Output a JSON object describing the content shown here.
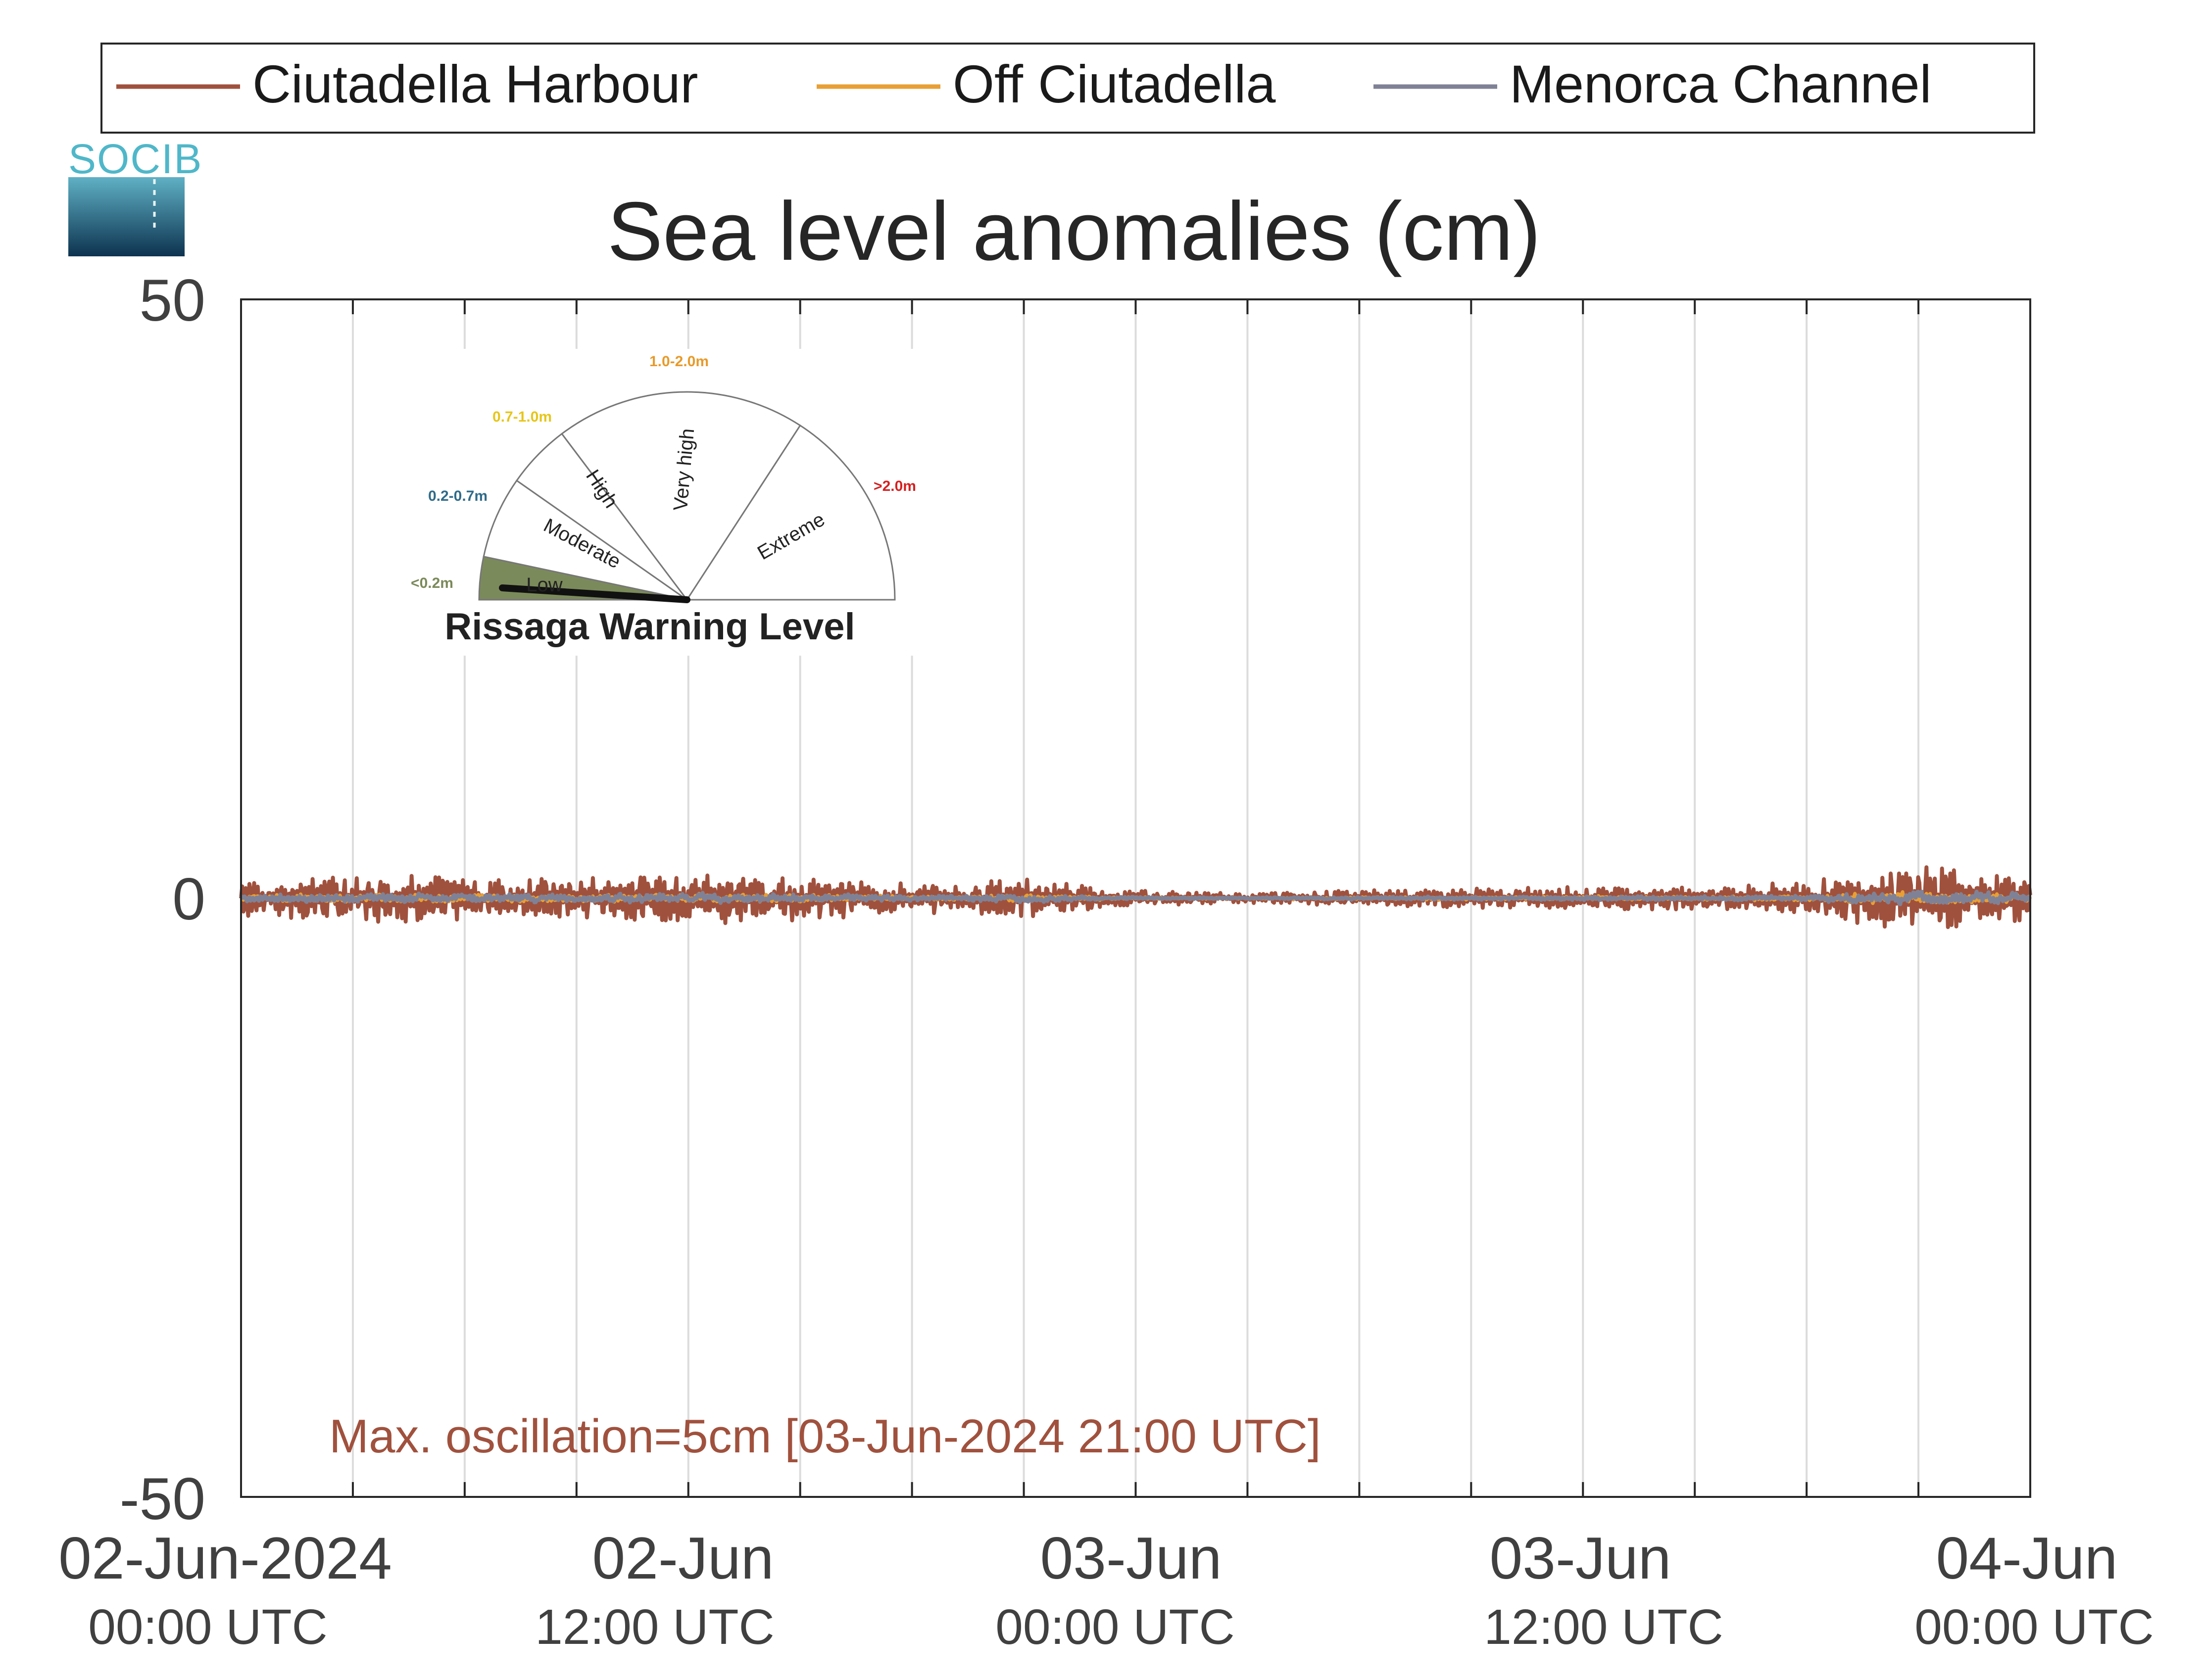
{
  "chart_data": {
    "type": "line",
    "title": "Sea level anomalies (cm)",
    "xlabel": "",
    "ylabel": "",
    "ylim": [
      -50,
      50
    ],
    "yticks": [
      "50",
      "0",
      "-50"
    ],
    "xlim": [
      "2024-06-02T00:00",
      "2024-06-04T00:00"
    ],
    "x_tick_labels": [
      {
        "date": "02-Jun-2024",
        "time": "00:00 UTC"
      },
      {
        "date": "02-Jun",
        "time": "12:00 UTC"
      },
      {
        "date": "03-Jun",
        "time": "00:00 UTC"
      },
      {
        "date": "03-Jun",
        "time": "12:00 UTC"
      },
      {
        "date": "04-Jun",
        "time": "00:00 UTC"
      }
    ],
    "grid": "vertical every 3 hours",
    "legend_position": "top",
    "series": [
      {
        "name": "Ciutadella Harbour",
        "color": "#a0513d",
        "approx_range_cm": [
          -3,
          3
        ],
        "x": [
          "2024-06-02T00:00",
          "2024-06-02T03:00",
          "2024-06-02T06:00",
          "2024-06-02T09:00",
          "2024-06-02T12:00",
          "2024-06-02T15:00",
          "2024-06-02T18:00",
          "2024-06-02T21:00",
          "2024-06-03T00:00",
          "2024-06-03T03:00",
          "2024-06-03T06:00",
          "2024-06-03T09:00",
          "2024-06-03T12:00",
          "2024-06-03T15:00",
          "2024-06-03T18:00",
          "2024-06-03T21:00",
          "2024-06-04T00:00"
        ],
        "envelope_cm": [
          1.2,
          1.5,
          1.4,
          1.3,
          1.6,
          1.4,
          0.9,
          1.2,
          0.5,
          0.3,
          0.5,
          0.6,
          0.7,
          0.7,
          1.0,
          2.2,
          1.6
        ]
      },
      {
        "name": "Off Ciutadella",
        "color": "#e89f35",
        "approx_range_cm": [
          -1,
          1
        ]
      },
      {
        "name": "Menorca Channel",
        "color": "#7f8296",
        "approx_range_cm": [
          -1.5,
          1.5
        ]
      }
    ],
    "annotation": "Max. oscillation=5cm [03-Jun-2024 21:00 UTC]"
  },
  "logo": {
    "text": "SOCIB"
  },
  "gauge": {
    "title": "Rissaga Warning Level",
    "current_level": "Low",
    "sectors": [
      {
        "label": "Low",
        "range": "<0.2m",
        "range_color": "#7b8a5a"
      },
      {
        "label": "Moderate",
        "range": "0.2-0.7m",
        "range_color": "#2f6b8a"
      },
      {
        "label": "High",
        "range": "0.7-1.0m",
        "range_color": "#e6c619"
      },
      {
        "label": "Very high",
        "range": "1.0-2.0m",
        "range_color": "#e89a2a"
      },
      {
        "label": "Extreme",
        "range": ">2.0m",
        "range_color": "#d62020"
      }
    ]
  }
}
